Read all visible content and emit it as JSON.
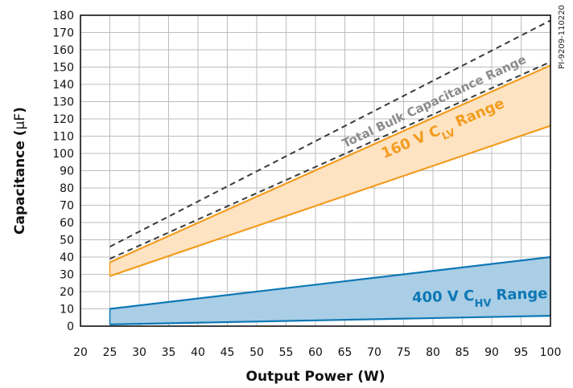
{
  "chart_data": {
    "type": "area",
    "xlabel": "Output Power (W)",
    "ylabel_main": "Capacitance (",
    "ylabel_unit": "µF",
    "ylabel_end": ")",
    "figure_code": "PI-9209-110220",
    "xlim": [
      20,
      100
    ],
    "ylim": [
      0,
      180
    ],
    "x_ticks": [
      20,
      25,
      30,
      35,
      40,
      45,
      50,
      55,
      60,
      65,
      70,
      75,
      80,
      85,
      90,
      95,
      100
    ],
    "y_ticks": [
      0,
      10,
      20,
      30,
      40,
      50,
      60,
      70,
      80,
      90,
      100,
      110,
      120,
      130,
      140,
      150,
      160,
      170,
      180
    ],
    "grid": true,
    "bands": [
      {
        "id": "clv",
        "label_main": "160 V C",
        "label_sub": "LV",
        "label_end": " Range",
        "color": "#F39C1F",
        "fill": "#FDE3C2",
        "x": [
          25,
          100
        ],
        "upper": [
          37,
          151
        ],
        "lower": [
          29,
          116
        ]
      },
      {
        "id": "chv",
        "label_main": "400 V C",
        "label_sub": "HV",
        "label_end": " Range",
        "color": "#0E77B5",
        "fill": "#A9CEE5",
        "x": [
          25,
          100
        ],
        "upper": [
          10,
          40
        ],
        "lower": [
          1,
          6
        ]
      }
    ],
    "total_range": {
      "label": "Total Bulk Capacitance Range",
      "color": "#3a3a3a",
      "label_color": "#8C8C8C",
      "x": [
        25,
        100
      ],
      "upper": [
        46,
        177
      ],
      "lower": [
        39,
        153
      ]
    }
  }
}
